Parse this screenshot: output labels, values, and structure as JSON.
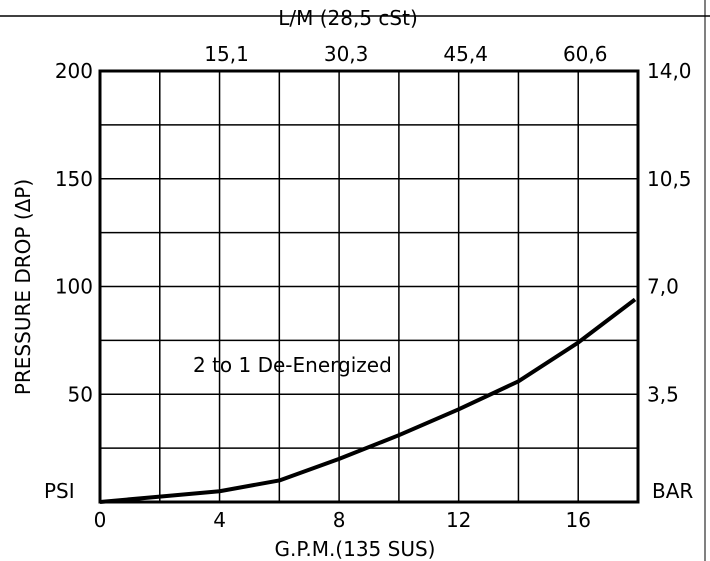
{
  "chart_data": {
    "type": "line",
    "title": "",
    "xlabel": "G.P.M.(135 SUS)",
    "ylabel": "PRESSURE DROP (ΔP)",
    "top_axis_label": "L/M (28,5 cSt)",
    "y_unit_left": "PSI",
    "y_unit_right": "BAR",
    "annotation": "2 to 1 De-Energized",
    "xlim": [
      0,
      18
    ],
    "ylim": [
      0,
      200
    ],
    "x_ticks": [
      0,
      4,
      8,
      12,
      16
    ],
    "x_tick_labels": [
      "0",
      "4",
      "8",
      "12",
      "16"
    ],
    "y_ticks": [
      50,
      100,
      150,
      200
    ],
    "y_tick_labels": [
      "50",
      "100",
      "150",
      "200"
    ],
    "top_ticks": [
      4,
      8,
      12,
      16
    ],
    "top_tick_labels": [
      "15,1",
      "30,3",
      "45,4",
      "60,6"
    ],
    "right_ticks": [
      50,
      100,
      150,
      200
    ],
    "right_tick_labels": [
      "3,5",
      "7,0",
      "10,5",
      "14,0"
    ],
    "grid_x": [
      2,
      4,
      6,
      8,
      10,
      12,
      14,
      16
    ],
    "grid_y": [
      25,
      50,
      75,
      100,
      125,
      150,
      175
    ],
    "grid": true,
    "series": [
      {
        "name": "2 to 1 De-Energized",
        "x": [
          0,
          2,
          4,
          6,
          8,
          10,
          12,
          14,
          16,
          17.9
        ],
        "y": [
          0,
          2.5,
          5,
          10,
          20,
          31,
          43,
          56,
          74,
          94
        ]
      }
    ]
  }
}
